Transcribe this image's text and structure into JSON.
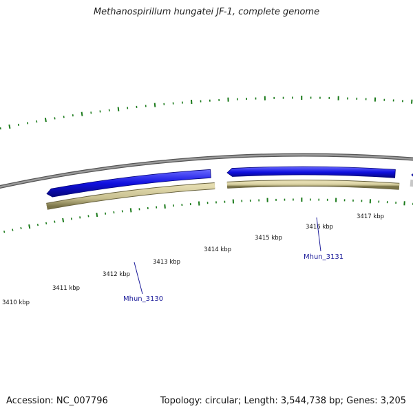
{
  "title": "Methanospirillum hungatei JF-1, complete genome",
  "accession": "Accession: NC_007796",
  "summary": "Topology: circular; Length: 3,544,738 bp; Genes: 3,205",
  "ticks": [
    "3410 kbp",
    "3411 kbp",
    "3412 kbp",
    "3413 kbp",
    "3414 kbp",
    "3415 kbp",
    "3416 kbp",
    "3417 kbp"
  ],
  "genes": [
    {
      "id": "Mhun_3130",
      "strand": "reverse",
      "color": "#1010e0"
    },
    {
      "id": "Mhun_3131",
      "strand": "reverse",
      "color": "#1010e0"
    },
    {
      "id": "",
      "strand": "reverse",
      "color": "#1010e0"
    }
  ],
  "colors": {
    "backbone": "#808080",
    "gene": "#1010e0",
    "cds_track": "#c8c090",
    "gc_ticks": "#1a7a1a",
    "gene_label": "#1a1a99"
  }
}
